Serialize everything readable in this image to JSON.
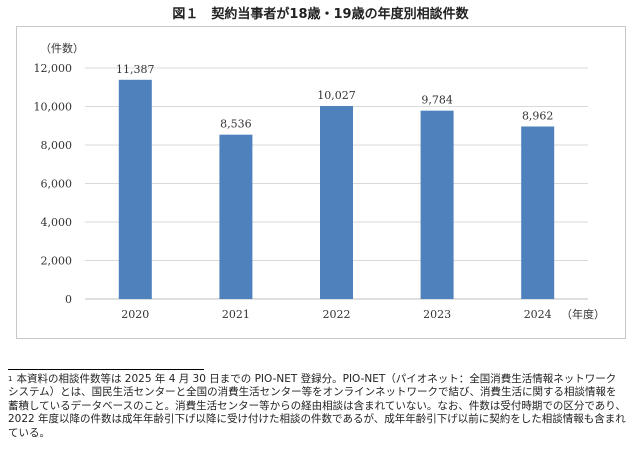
{
  "title": "図１　契約当事者が18歳・19歳の年度別相談件数",
  "chart_data": {
    "type": "bar",
    "categories": [
      "2020",
      "2021",
      "2022",
      "2023",
      "2024"
    ],
    "values": [
      11387,
      8536,
      10027,
      9784,
      8962
    ],
    "value_labels": [
      "11,387",
      "8,536",
      "10,027",
      "9,784",
      "8,962"
    ],
    "yticks": [
      "0",
      "2,000",
      "4,000",
      "6,000",
      "8,000",
      "10,000",
      "12,000"
    ],
    "ylim": [
      0,
      12000
    ],
    "ylabel": "（件数）",
    "xlabel": "（年度）",
    "bar_color": "#4f81bd",
    "grid_color": "#d9d9d9",
    "grid": true
  },
  "footnote": {
    "number": "1",
    "text": "本資料の相談件数等は 2025 年 4 月 30 日までの PIO-NET 登録分。PIO-NET（パイオネット：全国消費生活情報ネットワークシステム）とは、国民生活センターと全国の消費生活センター等をオンラインネットワークで結び、消費生活に関する相談情報を蓄積しているデータベースのこと。消費生活センター等からの経由相談は含まれていない。なお、件数は受付時期での区分であり、2022 年度以降の件数は成年年齢引下げ以降に受け付けた相談の件数であるが、成年年齢引下げ以前に契約をした相談情報も含まれている。"
  }
}
